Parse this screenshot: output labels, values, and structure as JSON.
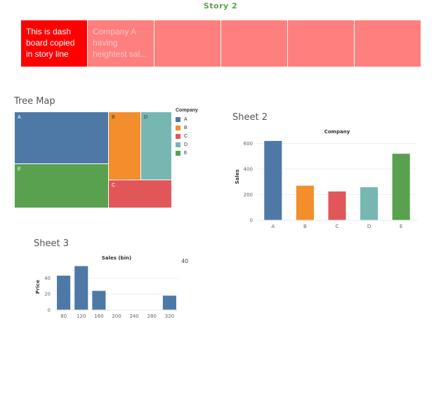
{
  "story": {
    "title": "Story 2",
    "nav_points": [
      {
        "text": "This is dash board copied in story line",
        "active": true
      },
      {
        "text": "Company A having heightest sal...",
        "active": false
      },
      {
        "text": "",
        "active": false
      },
      {
        "text": "",
        "active": false
      },
      {
        "text": "",
        "active": false
      },
      {
        "text": "",
        "active": false
      }
    ]
  },
  "colors": {
    "A": "#4e79a7",
    "B": "#f28e2b",
    "C": "#e15759",
    "D": "#76b7b2",
    "E": "#59a14f"
  },
  "treemap": {
    "title": "Tree Map",
    "legend_title": "Company",
    "legend": [
      "A",
      "B",
      "C",
      "D",
      "E"
    ],
    "cells": [
      {
        "label": "A",
        "color": "#4e79a7"
      },
      {
        "label": "B",
        "color": "#f28e2b"
      },
      {
        "label": "D",
        "color": "#76b7b2"
      },
      {
        "label": "E",
        "color": "#59a14f"
      },
      {
        "label": "C",
        "color": "#e15759"
      }
    ]
  },
  "sheet2": {
    "title": "Sheet 2",
    "stray_label": "40"
  },
  "sheet3": {
    "title": "Sheet 3"
  },
  "chart_data": [
    {
      "type": "bar",
      "title": "Company",
      "xlabel": "",
      "ylabel": "Sales",
      "categories": [
        "A",
        "B",
        "C",
        "D",
        "E"
      ],
      "values": [
        620,
        270,
        225,
        258,
        520
      ],
      "colors": [
        "#4e79a7",
        "#f28e2b",
        "#e15759",
        "#76b7b2",
        "#59a14f"
      ],
      "ylim": [
        0,
        680
      ],
      "yticks": [
        0,
        200,
        400,
        600
      ],
      "grid": true
    },
    {
      "type": "bar",
      "title": "Sales (bin)",
      "xlabel": "",
      "ylabel": "Price",
      "categories": [
        "80",
        "120",
        "160",
        "200",
        "240",
        "280",
        "320"
      ],
      "values": [
        43,
        55,
        24,
        0,
        0,
        0,
        18
      ],
      "colors": [
        "#4e79a7"
      ],
      "ylim": [
        0,
        58
      ],
      "yticks": [
        0,
        20,
        40
      ],
      "grid": true
    }
  ]
}
